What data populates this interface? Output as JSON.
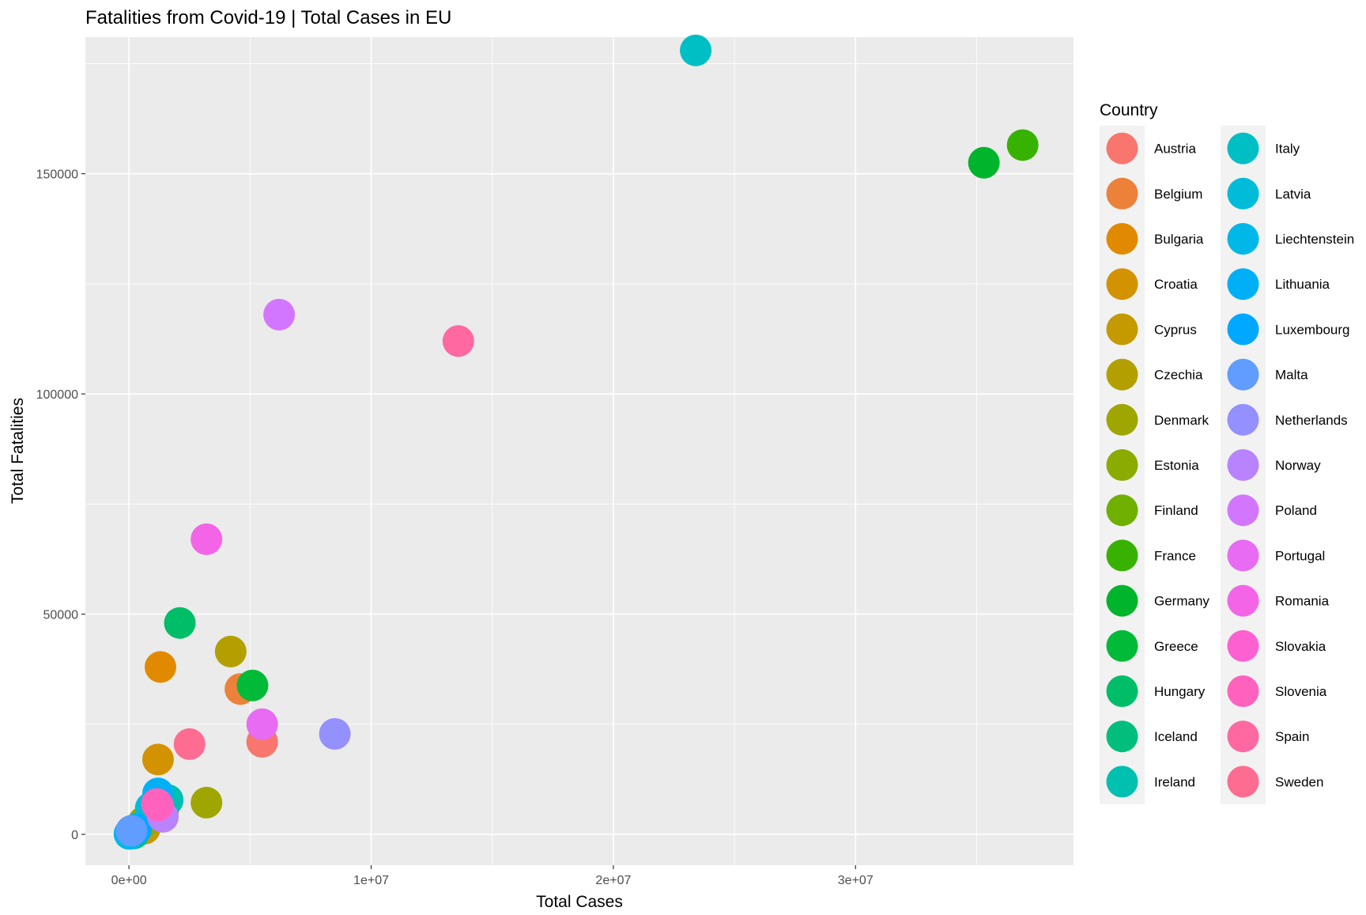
{
  "chart_data": {
    "type": "scatter",
    "title": "Fatalities from Covid-19 | Total Cases in EU",
    "xlabel": "Total Cases",
    "ylabel": "Total Fatalities",
    "xlim": [
      -1800000,
      39000000
    ],
    "ylim": [
      -7000,
      181000
    ],
    "x_ticks": [
      0,
      10000000,
      20000000,
      30000000
    ],
    "x_tick_labels": [
      "0e+00",
      "1e+07",
      "2e+07",
      "3e+07"
    ],
    "y_ticks": [
      0,
      50000,
      100000,
      150000
    ],
    "y_tick_labels": [
      "0",
      "50000",
      "100000",
      "150000"
    ],
    "grid": true,
    "legend_title": "Country",
    "legend_position": "right",
    "series": [
      {
        "name": "Austria",
        "color": "#F8766D",
        "x": 5500000,
        "y": 21000
      },
      {
        "name": "Belgium",
        "color": "#EC8239",
        "x": 4600000,
        "y": 33000
      },
      {
        "name": "Bulgaria",
        "color": "#E18A00",
        "x": 1300000,
        "y": 38000
      },
      {
        "name": "Croatia",
        "color": "#D39200",
        "x": 1200000,
        "y": 17000
      },
      {
        "name": "Cyprus",
        "color": "#C49A00",
        "x": 650000,
        "y": 1300
      },
      {
        "name": "Czechia",
        "color": "#B3A000",
        "x": 4200000,
        "y": 41500
      },
      {
        "name": "Denmark",
        "color": "#A0A600",
        "x": 3200000,
        "y": 7200
      },
      {
        "name": "Estonia",
        "color": "#8BAB00",
        "x": 600000,
        "y": 2800
      },
      {
        "name": "Finland",
        "color": "#6FB000",
        "x": 1400000,
        "y": 5000
      },
      {
        "name": "France",
        "color": "#38B200",
        "x": 36900000,
        "y": 156500
      },
      {
        "name": "Germany",
        "color": "#00B52C",
        "x": 35300000,
        "y": 152500
      },
      {
        "name": "Greece",
        "color": "#00BA38",
        "x": 5100000,
        "y": 33800
      },
      {
        "name": "Hungary",
        "color": "#00BD67",
        "x": 2100000,
        "y": 48000
      },
      {
        "name": "Iceland",
        "color": "#00BF7D",
        "x": 200000,
        "y": 200
      },
      {
        "name": "Ireland",
        "color": "#00C0AF",
        "x": 1600000,
        "y": 7800
      },
      {
        "name": "Italy",
        "color": "#00BFC4",
        "x": 23400000,
        "y": 178000
      },
      {
        "name": "Latvia",
        "color": "#00BCD8",
        "x": 900000,
        "y": 6000
      },
      {
        "name": "Liechtenstein",
        "color": "#00B8E7",
        "x": 20000,
        "y": 90
      },
      {
        "name": "Lithuania",
        "color": "#00B0F6",
        "x": 1200000,
        "y": 9300
      },
      {
        "name": "Luxembourg",
        "color": "#00A9FF",
        "x": 300000,
        "y": 1200
      },
      {
        "name": "Malta",
        "color": "#619CFF",
        "x": 100000,
        "y": 800
      },
      {
        "name": "Netherlands",
        "color": "#9590FF",
        "x": 8500000,
        "y": 22800
      },
      {
        "name": "Norway",
        "color": "#B983FF",
        "x": 1400000,
        "y": 4000
      },
      {
        "name": "Poland",
        "color": "#D376FF",
        "x": 6200000,
        "y": 118000
      },
      {
        "name": "Portugal",
        "color": "#E76BF3",
        "x": 5500000,
        "y": 25000
      },
      {
        "name": "Romania",
        "color": "#F365E6",
        "x": 3200000,
        "y": 67000
      },
      {
        "name": "Slovakia",
        "color": "#FD61D1",
        "x": 1200000,
        "y": 6500
      },
      {
        "name": "Slovenia",
        "color": "#FF62BC",
        "x": 1150000,
        "y": 6900
      },
      {
        "name": "Spain",
        "color": "#FF68A1",
        "x": 13600000,
        "y": 112000
      },
      {
        "name": "Sweden",
        "color": "#FF6C91",
        "x": 2500000,
        "y": 20500
      }
    ]
  },
  "colors": {
    "panel_background": "#EBEBEB",
    "gridline": "#FFFFFF",
    "text": "#000000",
    "tick_text": "#4D4D4D"
  }
}
